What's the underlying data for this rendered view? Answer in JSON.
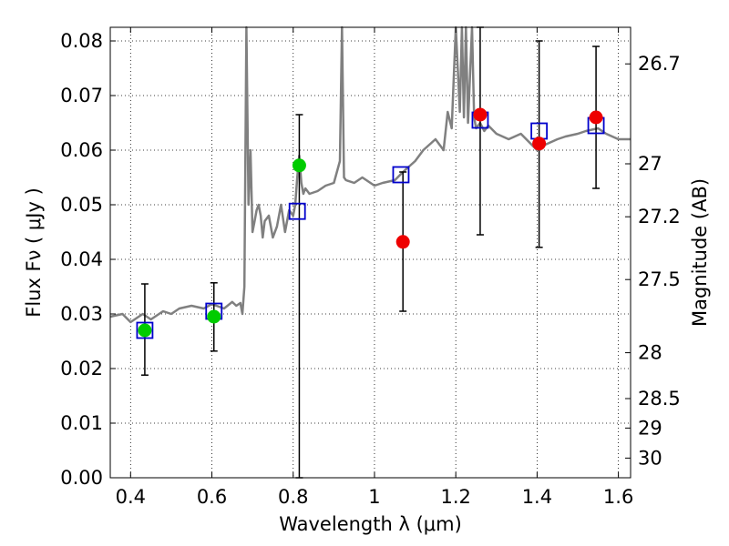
{
  "chart_data": {
    "type": "scatter",
    "xlabel": "Wavelength  λ (μm)",
    "ylabel": "Flux  Fν  ( μJy )",
    "y2label": "Magnitude (AB)",
    "xlim": [
      0.35,
      1.63
    ],
    "ylim": [
      0.0,
      0.0825
    ],
    "grid": true,
    "x_ticks": [
      0.4,
      0.6,
      0.8,
      1.0,
      1.2,
      1.4,
      1.6
    ],
    "x_tick_labels": [
      "0.4",
      "0.6",
      "0.8",
      "1",
      "1.2",
      "1.4",
      "1.6"
    ],
    "y_ticks": [
      0.0,
      0.01,
      0.02,
      0.03,
      0.04,
      0.05,
      0.06,
      0.07,
      0.08
    ],
    "y_tick_labels": [
      "0.00",
      "0.01",
      "0.02",
      "0.03",
      "0.04",
      "0.05",
      "0.06",
      "0.07",
      "0.08"
    ],
    "mag_ticks": [
      {
        "label": "26.7",
        "flux": 0.0758
      },
      {
        "label": "27",
        "flux": 0.0575
      },
      {
        "label": "27.2",
        "flux": 0.0478
      },
      {
        "label": "27.5",
        "flux": 0.0363
      },
      {
        "label": "28",
        "flux": 0.0229
      },
      {
        "label": "28.5",
        "flux": 0.0145
      },
      {
        "label": "29",
        "flux": 0.0091
      },
      {
        "label": "30",
        "flux": 0.0036
      }
    ],
    "spectrum": {
      "color": "#808080",
      "x": [
        0.35,
        0.38,
        0.4,
        0.43,
        0.45,
        0.48,
        0.5,
        0.52,
        0.55,
        0.58,
        0.6,
        0.63,
        0.65,
        0.66,
        0.67,
        0.675,
        0.68,
        0.685,
        0.69,
        0.695,
        0.7,
        0.705,
        0.71,
        0.715,
        0.72,
        0.725,
        0.73,
        0.74,
        0.75,
        0.76,
        0.77,
        0.78,
        0.79,
        0.8,
        0.805,
        0.81,
        0.815,
        0.82,
        0.825,
        0.83,
        0.84,
        0.86,
        0.88,
        0.9,
        0.915,
        0.92,
        0.925,
        0.93,
        0.95,
        0.97,
        1.0,
        1.02,
        1.05,
        1.07,
        1.1,
        1.12,
        1.15,
        1.17,
        1.18,
        1.19,
        1.2,
        1.21,
        1.215,
        1.22,
        1.225,
        1.23,
        1.24,
        1.245,
        1.25,
        1.26,
        1.27,
        1.28,
        1.3,
        1.33,
        1.36,
        1.38,
        1.4,
        1.42,
        1.45,
        1.47,
        1.5,
        1.52,
        1.55,
        1.57,
        1.6,
        1.63
      ],
      "y": [
        0.0295,
        0.03,
        0.0285,
        0.03,
        0.029,
        0.0305,
        0.03,
        0.031,
        0.0315,
        0.031,
        0.0318,
        0.031,
        0.0322,
        0.0315,
        0.032,
        0.03,
        0.035,
        0.0825,
        0.05,
        0.06,
        0.045,
        0.047,
        0.049,
        0.05,
        0.048,
        0.044,
        0.047,
        0.048,
        0.044,
        0.046,
        0.05,
        0.045,
        0.049,
        0.048,
        0.05,
        0.055,
        0.059,
        0.054,
        0.052,
        0.053,
        0.052,
        0.0525,
        0.0535,
        0.054,
        0.058,
        0.0825,
        0.055,
        0.0545,
        0.054,
        0.055,
        0.0535,
        0.054,
        0.0545,
        0.056,
        0.058,
        0.06,
        0.062,
        0.06,
        0.067,
        0.064,
        0.0825,
        0.067,
        0.0825,
        0.066,
        0.0825,
        0.065,
        0.0825,
        0.066,
        0.064,
        0.065,
        0.0635,
        0.0645,
        0.063,
        0.062,
        0.063,
        0.0615,
        0.06,
        0.061,
        0.062,
        0.0625,
        0.063,
        0.0635,
        0.064,
        0.063,
        0.062,
        0.062
      ]
    },
    "model_points": {
      "color": "#0000cc",
      "marker": "open-square",
      "x": [
        0.435,
        0.605,
        0.81,
        1.065,
        1.26,
        1.405,
        1.545
      ],
      "y": [
        0.027,
        0.0305,
        0.0488,
        0.0555,
        0.0655,
        0.0635,
        0.0645
      ]
    },
    "observations": [
      {
        "x": 0.435,
        "y": 0.027,
        "err_low": 0.0188,
        "err_high": 0.0355,
        "color": "#00cc00"
      },
      {
        "x": 0.605,
        "y": 0.0295,
        "err_low": 0.0232,
        "err_high": 0.0357,
        "color": "#00cc00"
      },
      {
        "x": 0.815,
        "y": 0.0572,
        "err_low": 0.0,
        "err_high": 0.0665,
        "color": "#00cc00"
      },
      {
        "x": 1.07,
        "y": 0.0432,
        "err_low": 0.0305,
        "err_high": 0.056,
        "color": "#ee0000"
      },
      {
        "x": 1.26,
        "y": 0.0665,
        "err_low": 0.0445,
        "err_high": 0.0825,
        "color": "#ee0000"
      },
      {
        "x": 1.405,
        "y": 0.0612,
        "err_low": 0.0422,
        "err_high": 0.08,
        "color": "#ee0000"
      },
      {
        "x": 1.545,
        "y": 0.066,
        "err_low": 0.053,
        "err_high": 0.079,
        "color": "#ee0000"
      }
    ]
  }
}
